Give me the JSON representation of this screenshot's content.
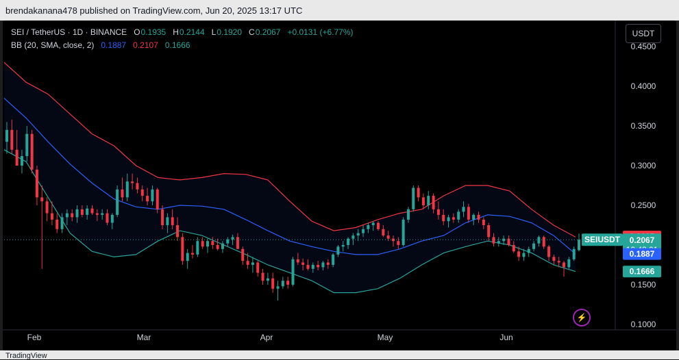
{
  "header": {
    "text": "brendakanana478 published on TradingView.com, Jun 20, 2025 13:17 UTC"
  },
  "footer": {
    "text": "TradingView"
  },
  "legend": {
    "symbol": "SEI / TetherUS · 1D · BINANCE",
    "o_label": "O",
    "o": "0.1935",
    "h_label": "H",
    "h": "0.2144",
    "l_label": "L",
    "l": "0.1920",
    "c_label": "C",
    "c": "0.2067",
    "change": "+0.0131 (+6.77%)",
    "bb_label": "BB (20, SMA, close, 2)",
    "bb_mid": "0.1887",
    "bb_upper": "0.2107",
    "bb_lower": "0.1666"
  },
  "currency_button": "USDT",
  "price_labels": {
    "symbol": "SEIUSDT",
    "upper": "0.2107",
    "close": "0.2067",
    "countdown": "10:42:01",
    "mid": "0.1887",
    "lower": "0.1666"
  },
  "colors": {
    "up": "#26a69a",
    "down": "#f23645",
    "bb_upper": "#f23645",
    "bb_mid": "#2962ff",
    "bb_lower": "#26a69a",
    "background": "#000000"
  },
  "chart_data": {
    "type": "candlestick",
    "y_ticks": [
      "0.4500",
      "0.4000",
      "0.3500",
      "0.3000",
      "0.2500",
      "0.1500",
      "0.1000"
    ],
    "x_ticks": [
      "Feb",
      "Mar",
      "Apr",
      "May",
      "Jun"
    ],
    "ylim": [
      0.1,
      0.45
    ],
    "candles": [
      [
        0.33,
        0.355,
        0.315,
        0.345
      ],
      [
        0.345,
        0.358,
        0.315,
        0.32
      ],
      [
        0.32,
        0.345,
        0.3,
        0.3
      ],
      [
        0.3,
        0.32,
        0.29,
        0.312
      ],
      [
        0.312,
        0.35,
        0.305,
        0.34
      ],
      [
        0.34,
        0.345,
        0.29,
        0.295
      ],
      [
        0.295,
        0.3,
        0.25,
        0.26
      ],
      [
        0.26,
        0.275,
        0.17,
        0.255
      ],
      [
        0.255,
        0.26,
        0.23,
        0.24
      ],
      [
        0.24,
        0.255,
        0.225,
        0.232
      ],
      [
        0.232,
        0.24,
        0.215,
        0.22
      ],
      [
        0.22,
        0.24,
        0.215,
        0.235
      ],
      [
        0.235,
        0.245,
        0.225,
        0.24
      ],
      [
        0.24,
        0.245,
        0.23,
        0.235
      ],
      [
        0.235,
        0.25,
        0.228,
        0.245
      ],
      [
        0.245,
        0.25,
        0.235,
        0.238
      ],
      [
        0.238,
        0.25,
        0.232,
        0.246
      ],
      [
        0.246,
        0.25,
        0.238,
        0.24
      ],
      [
        0.24,
        0.245,
        0.23,
        0.238
      ],
      [
        0.238,
        0.245,
        0.232,
        0.24
      ],
      [
        0.24,
        0.245,
        0.225,
        0.228
      ],
      [
        0.228,
        0.24,
        0.22,
        0.238
      ],
      [
        0.238,
        0.275,
        0.235,
        0.27
      ],
      [
        0.27,
        0.285,
        0.255,
        0.26
      ],
      [
        0.26,
        0.29,
        0.255,
        0.28
      ],
      [
        0.28,
        0.29,
        0.27,
        0.278
      ],
      [
        0.278,
        0.285,
        0.265,
        0.27
      ],
      [
        0.27,
        0.275,
        0.255,
        0.262
      ],
      [
        0.262,
        0.272,
        0.25,
        0.255
      ],
      [
        0.255,
        0.275,
        0.25,
        0.27
      ],
      [
        0.27,
        0.272,
        0.24,
        0.245
      ],
      [
        0.245,
        0.25,
        0.22,
        0.225
      ],
      [
        0.225,
        0.24,
        0.215,
        0.235
      ],
      [
        0.235,
        0.245,
        0.22,
        0.225
      ],
      [
        0.225,
        0.235,
        0.205,
        0.21
      ],
      [
        0.21,
        0.215,
        0.175,
        0.18
      ],
      [
        0.18,
        0.195,
        0.17,
        0.19
      ],
      [
        0.19,
        0.2,
        0.183,
        0.188
      ],
      [
        0.188,
        0.21,
        0.185,
        0.205
      ],
      [
        0.205,
        0.21,
        0.195,
        0.198
      ],
      [
        0.198,
        0.208,
        0.19,
        0.205
      ],
      [
        0.205,
        0.21,
        0.195,
        0.2
      ],
      [
        0.2,
        0.208,
        0.193,
        0.195
      ],
      [
        0.195,
        0.205,
        0.19,
        0.202
      ],
      [
        0.202,
        0.21,
        0.198,
        0.207
      ],
      [
        0.207,
        0.213,
        0.2,
        0.21
      ],
      [
        0.21,
        0.215,
        0.195,
        0.195
      ],
      [
        0.195,
        0.198,
        0.175,
        0.18
      ],
      [
        0.18,
        0.19,
        0.17,
        0.175
      ],
      [
        0.175,
        0.185,
        0.165,
        0.178
      ],
      [
        0.178,
        0.18,
        0.16,
        0.165
      ],
      [
        0.165,
        0.17,
        0.15,
        0.155
      ],
      [
        0.155,
        0.165,
        0.15,
        0.158
      ],
      [
        0.158,
        0.165,
        0.14,
        0.145
      ],
      [
        0.145,
        0.155,
        0.13,
        0.148
      ],
      [
        0.148,
        0.16,
        0.145,
        0.155
      ],
      [
        0.155,
        0.16,
        0.145,
        0.15
      ],
      [
        0.15,
        0.185,
        0.148,
        0.182
      ],
      [
        0.182,
        0.19,
        0.175,
        0.178
      ],
      [
        0.178,
        0.183,
        0.168,
        0.175
      ],
      [
        0.175,
        0.182,
        0.168,
        0.17
      ],
      [
        0.17,
        0.178,
        0.165,
        0.175
      ],
      [
        0.175,
        0.18,
        0.168,
        0.172
      ],
      [
        0.172,
        0.18,
        0.168,
        0.178
      ],
      [
        0.178,
        0.182,
        0.17,
        0.175
      ],
      [
        0.175,
        0.19,
        0.172,
        0.188
      ],
      [
        0.188,
        0.2,
        0.185,
        0.198
      ],
      [
        0.198,
        0.205,
        0.192,
        0.2
      ],
      [
        0.2,
        0.21,
        0.195,
        0.208
      ],
      [
        0.208,
        0.215,
        0.2,
        0.212
      ],
      [
        0.212,
        0.22,
        0.205,
        0.215
      ],
      [
        0.215,
        0.225,
        0.21,
        0.22
      ],
      [
        0.22,
        0.228,
        0.215,
        0.225
      ],
      [
        0.225,
        0.23,
        0.218,
        0.228
      ],
      [
        0.228,
        0.23,
        0.218,
        0.22
      ],
      [
        0.22,
        0.225,
        0.21,
        0.212
      ],
      [
        0.212,
        0.218,
        0.205,
        0.208
      ],
      [
        0.208,
        0.212,
        0.198,
        0.205
      ],
      [
        0.205,
        0.21,
        0.195,
        0.2
      ],
      [
        0.2,
        0.235,
        0.198,
        0.232
      ],
      [
        0.232,
        0.248,
        0.228,
        0.245
      ],
      [
        0.245,
        0.275,
        0.242,
        0.272
      ],
      [
        0.272,
        0.275,
        0.255,
        0.26
      ],
      [
        0.26,
        0.265,
        0.245,
        0.25
      ],
      [
        0.25,
        0.268,
        0.245,
        0.262
      ],
      [
        0.262,
        0.265,
        0.24,
        0.245
      ],
      [
        0.245,
        0.255,
        0.232,
        0.238
      ],
      [
        0.238,
        0.245,
        0.225,
        0.23
      ],
      [
        0.23,
        0.238,
        0.222,
        0.235
      ],
      [
        0.235,
        0.24,
        0.228,
        0.232
      ],
      [
        0.232,
        0.245,
        0.228,
        0.242
      ],
      [
        0.242,
        0.255,
        0.235,
        0.248
      ],
      [
        0.248,
        0.252,
        0.228,
        0.232
      ],
      [
        0.232,
        0.24,
        0.225,
        0.238
      ],
      [
        0.238,
        0.242,
        0.228,
        0.232
      ],
      [
        0.232,
        0.235,
        0.22,
        0.225
      ],
      [
        0.225,
        0.228,
        0.205,
        0.21
      ],
      [
        0.21,
        0.215,
        0.198,
        0.202
      ],
      [
        0.202,
        0.21,
        0.198,
        0.205
      ],
      [
        0.205,
        0.212,
        0.2,
        0.208
      ],
      [
        0.208,
        0.212,
        0.198,
        0.2
      ],
      [
        0.2,
        0.205,
        0.19,
        0.192
      ],
      [
        0.192,
        0.198,
        0.18,
        0.185
      ],
      [
        0.185,
        0.195,
        0.18,
        0.19
      ],
      [
        0.19,
        0.198,
        0.185,
        0.195
      ],
      [
        0.195,
        0.205,
        0.192,
        0.202
      ],
      [
        0.202,
        0.212,
        0.198,
        0.21
      ],
      [
        0.21,
        0.212,
        0.195,
        0.198
      ],
      [
        0.198,
        0.2,
        0.18,
        0.185
      ],
      [
        0.185,
        0.188,
        0.175,
        0.18
      ],
      [
        0.18,
        0.185,
        0.172,
        0.178
      ],
      [
        0.178,
        0.18,
        0.16,
        0.172
      ],
      [
        0.172,
        0.185,
        0.17,
        0.182
      ],
      [
        0.182,
        0.198,
        0.18,
        0.195
      ],
      [
        0.1935,
        0.2144,
        0.192,
        0.2067
      ]
    ],
    "bb_upper": [
      0.43,
      0.405,
      0.39,
      0.365,
      0.34,
      0.325,
      0.3,
      0.285,
      0.282,
      0.285,
      0.29,
      0.289,
      0.282,
      0.255,
      0.23,
      0.218,
      0.222,
      0.232,
      0.24,
      0.245,
      0.262,
      0.275,
      0.275,
      0.268,
      0.245,
      0.225,
      0.21
    ],
    "bb_mid": [
      0.385,
      0.36,
      0.33,
      0.302,
      0.278,
      0.258,
      0.248,
      0.245,
      0.25,
      0.249,
      0.245,
      0.232,
      0.218,
      0.205,
      0.198,
      0.192,
      0.188,
      0.188,
      0.195,
      0.205,
      0.212,
      0.228,
      0.238,
      0.236,
      0.228,
      0.212,
      0.1887
    ],
    "bb_lower": [
      0.32,
      0.305,
      0.26,
      0.215,
      0.192,
      0.185,
      0.188,
      0.205,
      0.218,
      0.212,
      0.2,
      0.188,
      0.175,
      0.165,
      0.155,
      0.14,
      0.14,
      0.145,
      0.158,
      0.175,
      0.19,
      0.198,
      0.205,
      0.2,
      0.19,
      0.175,
      0.1666
    ]
  }
}
